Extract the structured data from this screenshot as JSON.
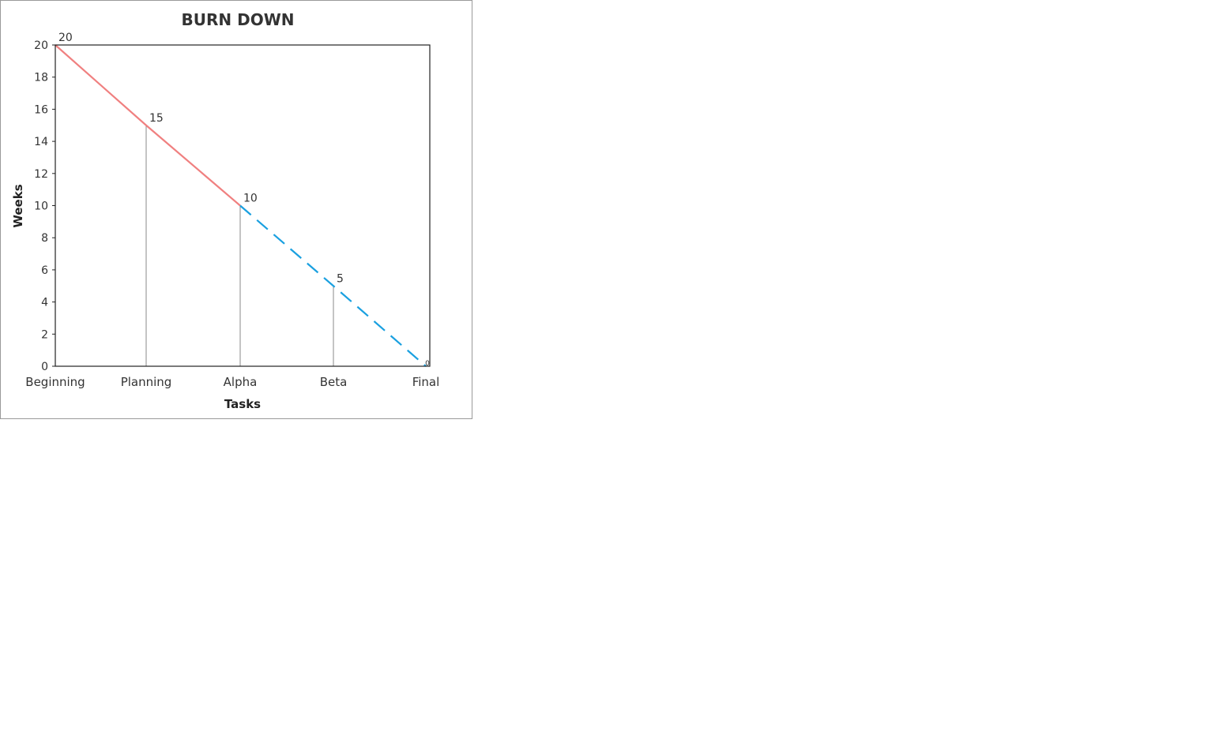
{
  "chart_data": {
    "type": "line",
    "title": "BURN DOWN",
    "xlabel": "Tasks",
    "ylabel": "Weeks",
    "categories": [
      "Beginning",
      "Planning",
      "Alpha",
      "Beta",
      "Final"
    ],
    "ylim": [
      0,
      20
    ],
    "yticks": [
      0,
      2,
      4,
      6,
      8,
      10,
      12,
      14,
      16,
      18,
      20
    ],
    "grid": false,
    "legend": "none",
    "series": [
      {
        "values": [
          20,
          15,
          10,
          null,
          null
        ],
        "color": "#f08080",
        "style": "solid"
      },
      {
        "values": [
          null,
          null,
          10,
          5,
          0
        ],
        "color": "#1aa0e0",
        "style": "dashed"
      }
    ],
    "drop_lines": [
      "Planning",
      "Alpha",
      "Beta"
    ],
    "data_labels": [
      {
        "category": "Beginning",
        "text": "20"
      },
      {
        "category": "Planning",
        "text": "15"
      },
      {
        "category": "Alpha",
        "text": "10"
      },
      {
        "category": "Beta",
        "text": "5"
      },
      {
        "category": "Final",
        "text": "0"
      }
    ]
  }
}
